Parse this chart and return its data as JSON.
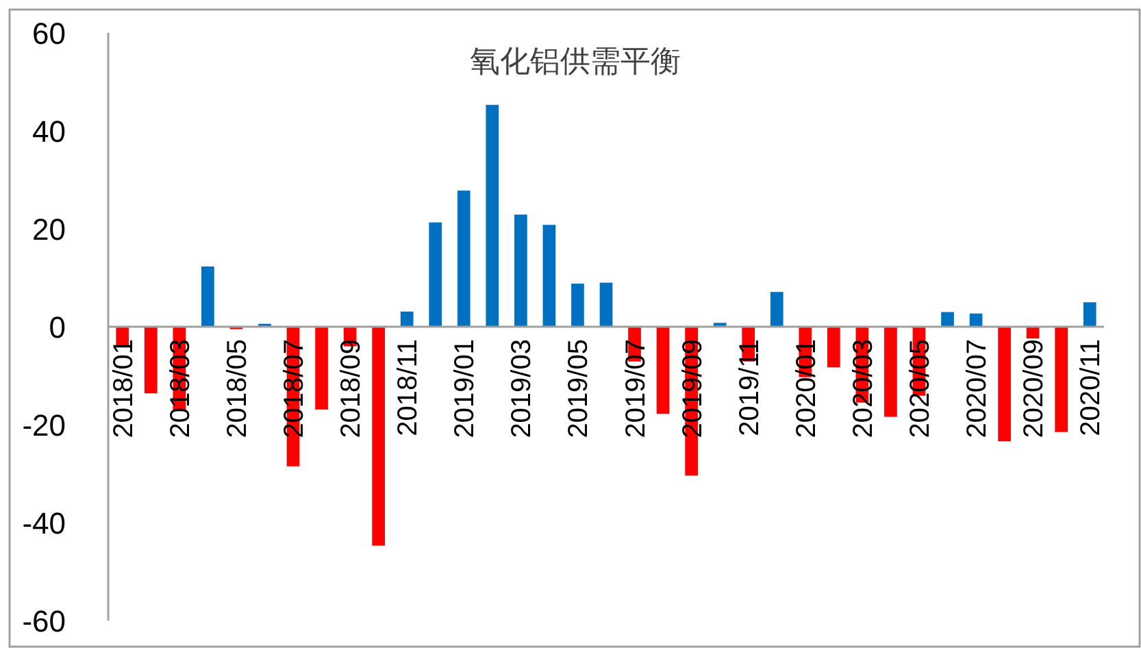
{
  "chart_data": {
    "type": "bar",
    "title": "氧化铝供需平衡",
    "categories": [
      "2018/01",
      null,
      "2018/03",
      null,
      "2018/05",
      null,
      "2018/07",
      null,
      "2018/09",
      null,
      "2018/11",
      null,
      "2019/01",
      null,
      "2019/03",
      null,
      "2019/05",
      null,
      "2019/07",
      null,
      "2019/09",
      null,
      "2019/11",
      null,
      "2020/01",
      null,
      "2020/03",
      null,
      "2020/05",
      null,
      "2020/07",
      null,
      "2020/09",
      null,
      "2020/11"
    ],
    "values": [
      -4,
      -13.6,
      -17,
      12.3,
      -0.5,
      0.6,
      -28.5,
      -16.9,
      -4,
      -44.7,
      3.1,
      21.3,
      27.8,
      45.3,
      22.9,
      20.8,
      8.8,
      9.0,
      -7.1,
      -17.8,
      -30.4,
      0.8,
      -7.1,
      7.1,
      -10.3,
      -8.3,
      -15.5,
      -18.4,
      -14.1,
      3.0,
      2.7,
      -23.4,
      -2.4,
      -21.5,
      5.0
    ],
    "colors": [
      "#ff0000",
      "#ff0000",
      "#ff0000",
      "#0070c0",
      "#ff0000",
      "#0070c0",
      "#ff0000",
      "#ff0000",
      "#ff0000",
      "#ff0000",
      "#0070c0",
      "#0070c0",
      "#0070c0",
      "#0070c0",
      "#0070c0",
      "#0070c0",
      "#0070c0",
      "#0070c0",
      "#ff0000",
      "#ff0000",
      "#ff0000",
      "#0070c0",
      "#ff0000",
      "#0070c0",
      "#ff0000",
      "#ff0000",
      "#ff0000",
      "#ff0000",
      "#ff0000",
      "#0070c0",
      "#0070c0",
      "#ff0000",
      "#ff0000",
      "#ff0000",
      "#0070c0"
    ],
    "ylim": [
      -60,
      60
    ],
    "yticks": [
      -60,
      -40,
      -20,
      0,
      20,
      40,
      60
    ]
  }
}
